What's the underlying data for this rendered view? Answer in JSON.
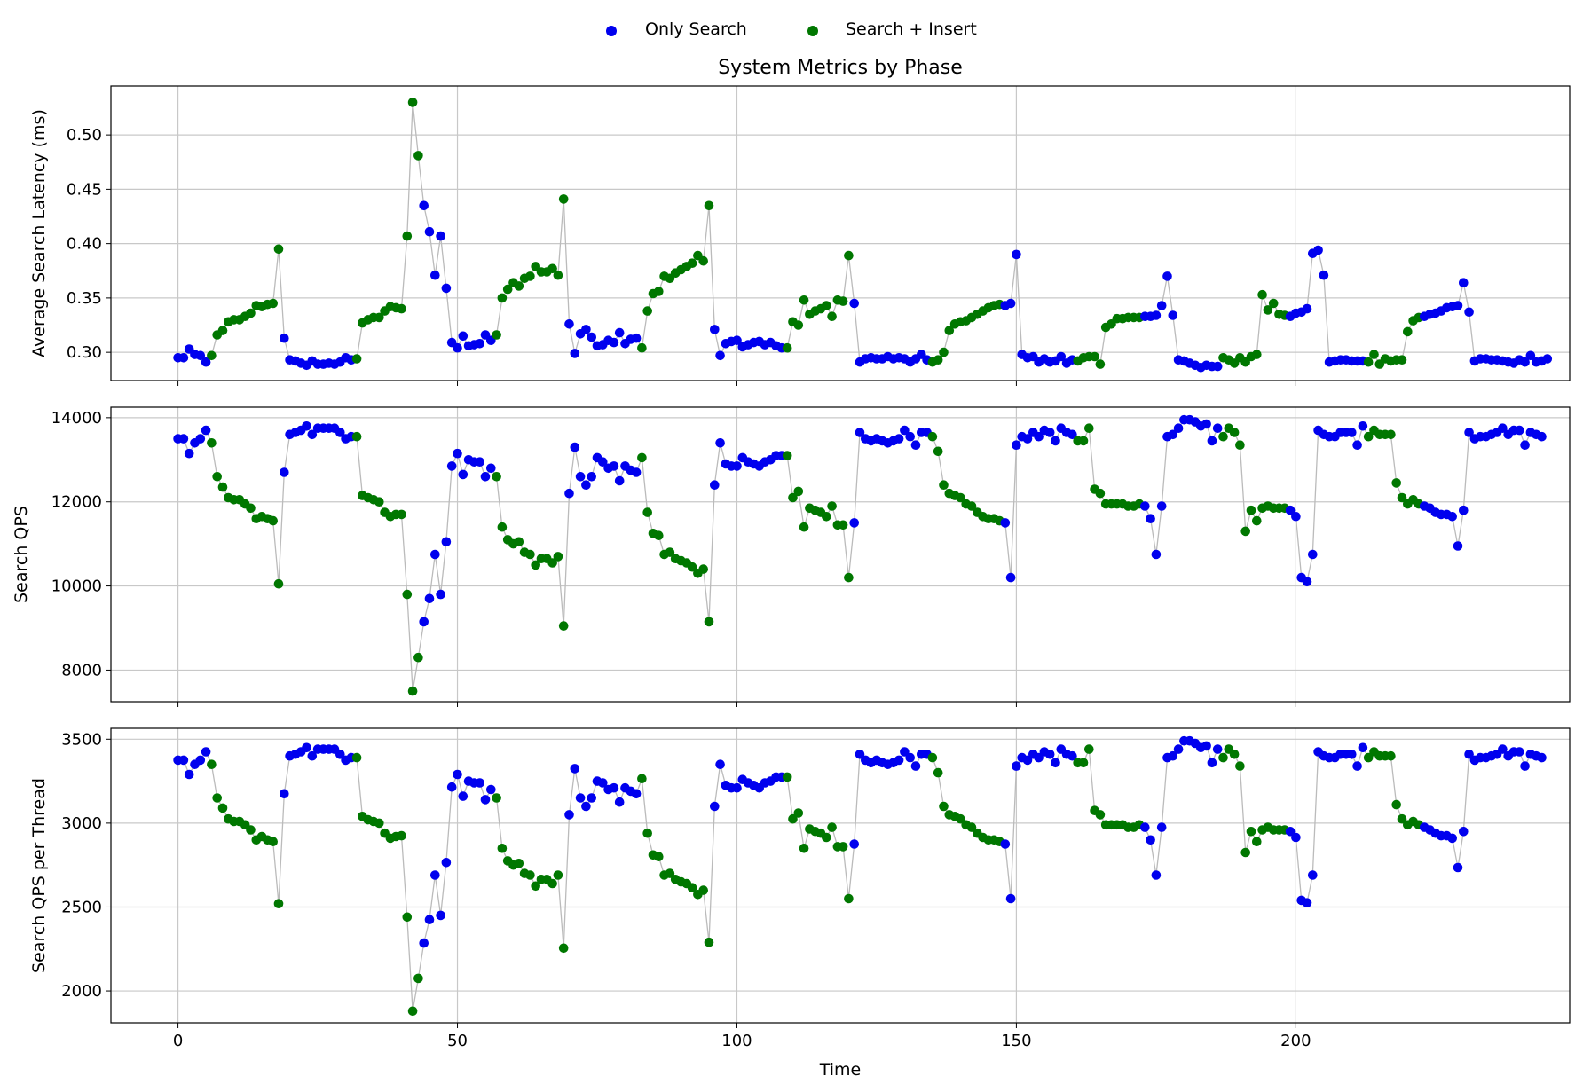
{
  "chart_data": {
    "type": "scatter",
    "title": "System Metrics by Phase",
    "xlabel": "Time",
    "legend": {
      "placement": "top-center",
      "entries": [
        {
          "name": "Only Search",
          "color": "#0000ee"
        },
        {
          "name": "Search + Insert",
          "color": "#007700"
        }
      ]
    },
    "colors": {
      "Only Search": "#0000ee",
      "Search + Insert": "#007700",
      "line": "#bbbbbb",
      "grid": "#c8c8c8"
    },
    "xlim": [
      -12,
      249
    ],
    "x_ticks": [
      0,
      50,
      100,
      150,
      200
    ],
    "grid": true,
    "phases": [
      {
        "phase": "Only Search",
        "start": 0,
        "end": 5
      },
      {
        "phase": "Search + Insert",
        "start": 6,
        "end": 18
      },
      {
        "phase": "Only Search",
        "start": 19,
        "end": 31
      },
      {
        "phase": "Search + Insert",
        "start": 32,
        "end": 43
      },
      {
        "phase": "Only Search",
        "start": 44,
        "end": 56
      },
      {
        "phase": "Search + Insert",
        "start": 57,
        "end": 69
      },
      {
        "phase": "Only Search",
        "start": 70,
        "end": 82
      },
      {
        "phase": "Search + Insert",
        "start": 83,
        "end": 95
      },
      {
        "phase": "Only Search",
        "start": 96,
        "end": 108
      },
      {
        "phase": "Search + Insert",
        "start": 109,
        "end": 120
      },
      {
        "phase": "Only Search",
        "start": 121,
        "end": 134
      },
      {
        "phase": "Search + Insert",
        "start": 135,
        "end": 147
      },
      {
        "phase": "Only Search",
        "start": 148,
        "end": 160
      },
      {
        "phase": "Search + Insert",
        "start": 161,
        "end": 172
      },
      {
        "phase": "Only Search",
        "start": 173,
        "end": 186
      },
      {
        "phase": "Search + Insert",
        "start": 187,
        "end": 198
      },
      {
        "phase": "Only Search",
        "start": 199,
        "end": 212
      },
      {
        "phase": "Search + Insert",
        "start": 213,
        "end": 222
      },
      {
        "phase": "Only Search",
        "start": 223,
        "end": 237
      }
    ],
    "panels": [
      {
        "ylabel": "Average Search Latency (ms)",
        "ylim": [
          0.274,
          0.545
        ],
        "y_ticks": [
          0.3,
          0.35,
          0.4,
          0.45,
          0.5
        ],
        "y_tick_labels": [
          "0.30",
          "0.35",
          "0.40",
          "0.45",
          "0.50"
        ],
        "values": [
          0.295,
          0.295,
          0.303,
          0.298,
          0.297,
          0.291,
          0.297,
          0.316,
          0.32,
          0.328,
          0.33,
          0.33,
          0.333,
          0.336,
          0.343,
          0.342,
          0.344,
          0.345,
          0.395,
          0.313,
          0.293,
          0.292,
          0.29,
          0.288,
          0.292,
          0.289,
          0.289,
          0.29,
          0.289,
          0.291,
          0.295,
          0.293,
          0.294,
          0.327,
          0.33,
          0.332,
          0.332,
          0.338,
          0.342,
          0.341,
          0.34,
          0.407,
          0.53,
          0.481,
          0.435,
          0.411,
          0.371,
          0.407,
          0.359,
          0.309,
          0.304,
          0.315,
          0.306,
          0.307,
          0.308,
          0.316,
          0.311,
          0.316,
          0.35,
          0.358,
          0.364,
          0.361,
          0.368,
          0.37,
          0.379,
          0.374,
          0.374,
          0.377,
          0.371,
          0.441,
          0.326,
          0.299,
          0.317,
          0.321,
          0.314,
          0.306,
          0.307,
          0.311,
          0.309,
          0.318,
          0.308,
          0.312,
          0.313,
          0.304,
          0.338,
          0.354,
          0.356,
          0.37,
          0.368,
          0.373,
          0.376,
          0.379,
          0.382,
          0.389,
          0.384,
          0.435,
          0.321,
          0.297,
          0.308,
          0.31,
          0.311,
          0.305,
          0.307,
          0.309,
          0.31,
          0.307,
          0.309,
          0.306,
          0.304,
          0.304,
          0.328,
          0.325,
          0.348,
          0.335,
          0.338,
          0.34,
          0.343,
          0.333,
          0.348,
          0.347,
          0.389,
          0.345,
          0.291,
          0.294,
          0.295,
          0.294,
          0.294,
          0.296,
          0.294,
          0.295,
          0.294,
          0.291,
          0.294,
          0.298,
          0.293,
          0.291,
          0.293,
          0.3,
          0.32,
          0.326,
          0.328,
          0.329,
          0.332,
          0.335,
          0.338,
          0.341,
          0.343,
          0.344,
          0.343,
          0.345,
          0.39,
          0.298,
          0.295,
          0.296,
          0.291,
          0.294,
          0.291,
          0.292,
          0.296,
          0.29,
          0.293,
          0.292,
          0.295,
          0.296,
          0.296,
          0.289,
          0.323,
          0.326,
          0.331,
          0.331,
          0.332,
          0.332,
          0.332,
          0.333,
          0.333,
          0.334,
          0.343,
          0.37,
          0.334,
          0.293,
          0.292,
          0.29,
          0.288,
          0.286,
          0.288,
          0.287,
          0.287,
          0.295,
          0.293,
          0.29,
          0.295,
          0.291,
          0.296,
          0.298,
          0.353,
          0.339,
          0.345,
          0.335,
          0.334,
          0.333,
          0.336,
          0.337,
          0.34,
          0.391,
          0.394,
          0.371,
          0.291,
          0.292,
          0.293,
          0.293,
          0.292,
          0.292,
          0.292,
          0.291,
          0.298,
          0.289,
          0.294,
          0.292,
          0.293,
          0.293,
          0.319,
          0.329,
          0.332,
          0.333,
          0.335,
          0.336,
          0.338,
          0.341,
          0.342,
          0.343,
          0.364,
          0.337,
          0.292,
          0.294,
          0.294,
          0.293,
          0.293,
          0.292,
          0.291,
          0.29,
          0.293,
          0.291,
          0.297,
          0.291,
          0.292,
          0.294
        ]
      },
      {
        "ylabel": "Search QPS",
        "ylim": [
          7250,
          14250
        ],
        "y_ticks": [
          8000,
          10000,
          12000,
          14000
        ],
        "y_tick_labels": [
          "8000",
          "10000",
          "12000",
          "14000"
        ],
        "values": [
          13500,
          13500,
          13150,
          13400,
          13500,
          13700,
          13400,
          12600,
          12350,
          12100,
          12050,
          12050,
          11950,
          11850,
          11600,
          11650,
          11600,
          11550,
          10050,
          12700,
          13600,
          13650,
          13700,
          13800,
          13600,
          13750,
          13750,
          13750,
          13750,
          13650,
          13500,
          13550,
          13550,
          12150,
          12100,
          12050,
          12000,
          11750,
          11650,
          11700,
          11700,
          9800,
          7500,
          8300,
          9150,
          9700,
          10750,
          9800,
          11050,
          12850,
          13150,
          12650,
          13000,
          12950,
          12950,
          12600,
          12800,
          12600,
          11400,
          11100,
          11000,
          11050,
          10800,
          10750,
          10500,
          10650,
          10650,
          10550,
          10700,
          9050,
          12200,
          13300,
          12600,
          12400,
          12600,
          13050,
          12950,
          12800,
          12850,
          12500,
          12850,
          12750,
          12700,
          13050,
          11750,
          11250,
          11200,
          10750,
          10800,
          10650,
          10600,
          10550,
          10450,
          10300,
          10400,
          9150,
          12400,
          13400,
          12900,
          12850,
          12850,
          13050,
          12950,
          12900,
          12850,
          12950,
          13000,
          13100,
          13100,
          13100,
          12100,
          12250,
          11400,
          11850,
          11800,
          11750,
          11650,
          11900,
          11450,
          11450,
          10200,
          11500,
          13650,
          13500,
          13450,
          13500,
          13450,
          13400,
          13450,
          13500,
          13700,
          13550,
          13350,
          13650,
          13650,
          13550,
          13200,
          12400,
          12200,
          12150,
          12100,
          11950,
          11900,
          11750,
          11650,
          11600,
          11600,
          11550,
          11500,
          10200,
          13350,
          13550,
          13500,
          13650,
          13550,
          13700,
          13650,
          13450,
          13750,
          13650,
          13600,
          13450,
          13450,
          13750,
          12300,
          12200,
          11950,
          11950,
          11950,
          11950,
          11900,
          11900,
          11950,
          11900,
          11600,
          10750,
          11900,
          13550,
          13600,
          13750,
          13950,
          13950,
          13900,
          13800,
          13850,
          13450,
          13750,
          13550,
          13750,
          13650,
          13350,
          11300,
          11800,
          11550,
          11850,
          11900,
          11850,
          11850,
          11850,
          11800,
          11650,
          10200,
          10100,
          10750,
          13700,
          13600,
          13550,
          13550,
          13650,
          13650,
          13650,
          13350,
          13800,
          13550,
          13700,
          13600,
          13600,
          13600,
          12450,
          12100,
          11950,
          12050,
          11950,
          11900,
          11850,
          11750,
          11700,
          11700,
          11650,
          10950,
          11800,
          13650,
          13500,
          13550,
          13550,
          13600,
          13650,
          13750,
          13600,
          13700,
          13700,
          13350,
          13650,
          13600,
          13550
        ]
      },
      {
        "ylabel": "Search QPS per Thread",
        "ylim": [
          1810,
          3565
        ],
        "y_ticks": [
          2000,
          2500,
          3000,
          3500
        ],
        "y_tick_labels": [
          "2000",
          "2500",
          "3000",
          "3500"
        ],
        "values": [
          3375,
          3375,
          3290,
          3350,
          3375,
          3425,
          3350,
          3150,
          3090,
          3025,
          3010,
          3010,
          2990,
          2960,
          2900,
          2920,
          2900,
          2890,
          2520,
          3175,
          3400,
          3410,
          3425,
          3450,
          3400,
          3440,
          3440,
          3440,
          3440,
          3410,
          3375,
          3390,
          3390,
          3040,
          3020,
          3010,
          3000,
          2940,
          2910,
          2920,
          2925,
          2440,
          1880,
          2075,
          2285,
          2425,
          2690,
          2450,
          2765,
          3215,
          3290,
          3160,
          3250,
          3240,
          3240,
          3140,
          3200,
          3150,
          2850,
          2775,
          2750,
          2760,
          2700,
          2690,
          2625,
          2665,
          2665,
          2640,
          2690,
          2255,
          3050,
          3325,
          3150,
          3100,
          3150,
          3250,
          3240,
          3200,
          3210,
          3125,
          3210,
          3190,
          3175,
          3265,
          2940,
          2810,
          2800,
          2690,
          2700,
          2665,
          2650,
          2640,
          2615,
          2575,
          2600,
          2290,
          3100,
          3350,
          3225,
          3210,
          3210,
          3260,
          3240,
          3225,
          3210,
          3240,
          3250,
          3275,
          3275,
          3275,
          3025,
          3060,
          2850,
          2965,
          2950,
          2940,
          2915,
          2975,
          2860,
          2860,
          2550,
          2875,
          3410,
          3375,
          3360,
          3375,
          3360,
          3350,
          3360,
          3375,
          3425,
          3390,
          3340,
          3410,
          3410,
          3390,
          3300,
          3100,
          3050,
          3040,
          3025,
          2990,
          2975,
          2940,
          2915,
          2900,
          2900,
          2890,
          2875,
          2550,
          3340,
          3390,
          3375,
          3410,
          3390,
          3425,
          3410,
          3360,
          3440,
          3410,
          3400,
          3360,
          3360,
          3440,
          3075,
          3050,
          2990,
          2990,
          2990,
          2990,
          2975,
          2975,
          2990,
          2975,
          2900,
          2690,
          2975,
          3390,
          3400,
          3440,
          3490,
          3490,
          3475,
          3450,
          3460,
          3360,
          3440,
          3390,
          3440,
          3410,
          3340,
          2825,
          2950,
          2890,
          2960,
          2975,
          2960,
          2960,
          2960,
          2950,
          2915,
          2540,
          2525,
          2690,
          3425,
          3400,
          3390,
          3390,
          3410,
          3410,
          3410,
          3340,
          3450,
          3390,
          3425,
          3400,
          3400,
          3400,
          3110,
          3025,
          2990,
          3010,
          2990,
          2975,
          2960,
          2940,
          2925,
          2925,
          2910,
          2735,
          2950,
          3410,
          3375,
          3390,
          3390,
          3400,
          3410,
          3440,
          3400,
          3425,
          3425,
          3340,
          3410,
          3400,
          3390
        ]
      }
    ]
  }
}
